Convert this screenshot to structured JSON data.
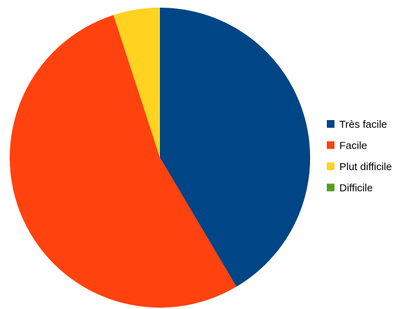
{
  "chart_data": {
    "type": "pie",
    "title": "",
    "categories": [
      "Très facile",
      "Facile",
      "Plut difficile",
      "Difficile"
    ],
    "values": [
      41.5,
      53.5,
      5.0,
      0
    ],
    "colors": [
      "#004586",
      "#ff420e",
      "#ffd320",
      "#579d1c"
    ],
    "start_angle_deg": 0,
    "direction": "clockwise-from-top",
    "legend_position": "right"
  }
}
